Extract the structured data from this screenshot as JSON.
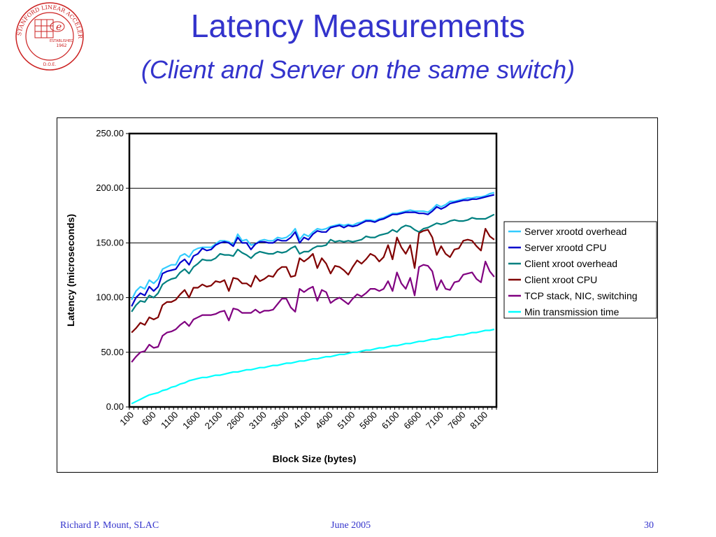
{
  "slide": {
    "title": "Latency Measurements",
    "subtitle": "(Client and Server on the same switch)",
    "footer_left": "Richard P. Mount,   SLAC",
    "footer_center": "June 2005",
    "footer_right": "30",
    "text_color": "#3333cc",
    "logo": {
      "icon": "slac-seal-icon",
      "ring_text": "STANFORD LINEAR ACCELERATOR CENTER",
      "established": "ESTABLISHED",
      "year": "1962",
      "bottom_text": "D.O.E.",
      "color": "#cc2222"
    }
  },
  "chart_data": {
    "type": "line",
    "title": "",
    "xlabel": "Block Size (bytes)",
    "ylabel": "Latency (microseconds)",
    "ylim": [
      0,
      250
    ],
    "yticks": [
      "0.00",
      "50.00",
      "100.00",
      "150.00",
      "200.00",
      "250.00"
    ],
    "x": [
      100,
      200,
      300,
      400,
      500,
      600,
      700,
      800,
      900,
      1000,
      1100,
      1200,
      1300,
      1400,
      1500,
      1600,
      1700,
      1800,
      1900,
      2000,
      2100,
      2200,
      2300,
      2400,
      2500,
      2600,
      2700,
      2800,
      2900,
      3000,
      3100,
      3200,
      3300,
      3400,
      3500,
      3600,
      3700,
      3800,
      3900,
      4000,
      4100,
      4200,
      4300,
      4400,
      4500,
      4600,
      4700,
      4800,
      4900,
      5000,
      5100,
      5200,
      5300,
      5400,
      5500,
      5600,
      5700,
      5800,
      5900,
      6000,
      6100,
      6200,
      6300,
      6400,
      6500,
      6600,
      6700,
      6800,
      6900,
      7000,
      7100,
      7200,
      7300,
      7400,
      7500,
      7600,
      7700,
      7800,
      7900,
      8000,
      8100,
      8200,
      8300
    ],
    "xtick_labels": [
      "100",
      "600",
      "1100",
      "1600",
      "2100",
      "2600",
      "3100",
      "3600",
      "4100",
      "4600",
      "5100",
      "5600",
      "6100",
      "6600",
      "7100",
      "7600",
      "8100"
    ],
    "grid": "horizontal",
    "legend": "right",
    "series": [
      {
        "name": "Server xrootd overhead",
        "color": "#33ccff",
        "values": [
          98,
          106,
          110,
          108,
          116,
          113,
          117,
          126,
          128,
          130,
          130,
          138,
          140,
          137,
          143,
          145,
          146,
          146,
          146,
          149,
          152,
          152,
          151,
          148,
          158,
          152,
          153,
          148,
          149,
          152,
          153,
          152,
          152,
          155,
          154,
          155,
          158,
          163,
          153,
          158,
          156,
          160,
          163,
          162,
          163,
          165,
          166,
          167,
          166,
          167,
          166,
          168,
          169,
          171,
          171,
          170,
          172,
          173,
          175,
          177,
          177,
          178,
          179,
          180,
          179,
          179,
          179,
          178,
          181,
          185,
          183,
          185,
          188,
          188,
          189,
          190,
          191,
          191,
          192,
          192,
          193,
          195,
          196
        ]
      },
      {
        "name": "Server xrootd CPU",
        "color": "#0000cc",
        "values": [
          92,
          100,
          104,
          102,
          110,
          106,
          110,
          122,
          124,
          125,
          126,
          132,
          135,
          130,
          138,
          140,
          145,
          143,
          144,
          148,
          150,
          151,
          150,
          147,
          155,
          150,
          150,
          144,
          149,
          151,
          151,
          150,
          150,
          153,
          152,
          152,
          155,
          160,
          150,
          155,
          153,
          158,
          161,
          160,
          160,
          164,
          165,
          166,
          164,
          166,
          165,
          166,
          168,
          170,
          170,
          169,
          171,
          172,
          174,
          176,
          176,
          177,
          178,
          178,
          178,
          177,
          177,
          176,
          179,
          183,
          181,
          183,
          186,
          187,
          188,
          189,
          189,
          190,
          190,
          191,
          192,
          193,
          194
        ]
      },
      {
        "name": "Client xroot overhead",
        "color": "#008080",
        "values": [
          87,
          93,
          97,
          96,
          102,
          100,
          104,
          112,
          115,
          117,
          118,
          123,
          126,
          122,
          128,
          131,
          135,
          134,
          134,
          136,
          140,
          139,
          139,
          138,
          144,
          141,
          139,
          136,
          140,
          142,
          141,
          140,
          140,
          142,
          141,
          142,
          145,
          147,
          140,
          142,
          142,
          145,
          147,
          147,
          148,
          153,
          151,
          152,
          151,
          152,
          151,
          152,
          153,
          156,
          155,
          155,
          157,
          158,
          159,
          162,
          160,
          164,
          166,
          165,
          162,
          160,
          163,
          164,
          166,
          168,
          167,
          168,
          170,
          171,
          170,
          170,
          171,
          173,
          172,
          172,
          172,
          174,
          176
        ]
      },
      {
        "name": "Client xroot CPU",
        "color": "#800000",
        "values": [
          68,
          72,
          77,
          75,
          82,
          80,
          82,
          93,
          96,
          96,
          98,
          103,
          107,
          100,
          109,
          109,
          112,
          110,
          111,
          115,
          114,
          116,
          106,
          118,
          117,
          113,
          113,
          110,
          120,
          115,
          117,
          120,
          119,
          125,
          128,
          128,
          119,
          120,
          136,
          133,
          136,
          140,
          127,
          136,
          131,
          122,
          129,
          128,
          125,
          121,
          128,
          134,
          131,
          135,
          140,
          138,
          133,
          137,
          148,
          135,
          155,
          146,
          140,
          148,
          127,
          159,
          161,
          162,
          155,
          139,
          147,
          140,
          137,
          144,
          145,
          152,
          153,
          152,
          147,
          143,
          163,
          156,
          153
        ]
      },
      {
        "name": "TCP stack, NIC, switching",
        "color": "#800080",
        "values": [
          41,
          46,
          50,
          51,
          57,
          54,
          55,
          65,
          68,
          69,
          71,
          75,
          78,
          74,
          80,
          82,
          84,
          84,
          84,
          85,
          87,
          88,
          79,
          90,
          89,
          86,
          86,
          86,
          89,
          86,
          88,
          88,
          89,
          94,
          99,
          99,
          91,
          87,
          108,
          105,
          108,
          110,
          97,
          107,
          105,
          95,
          98,
          100,
          97,
          94,
          99,
          103,
          101,
          104,
          108,
          108,
          106,
          108,
          115,
          106,
          123,
          113,
          108,
          118,
          102,
          128,
          130,
          129,
          124,
          107,
          116,
          108,
          107,
          114,
          115,
          121,
          122,
          123,
          117,
          114,
          133,
          124,
          119
        ]
      },
      {
        "name": "Min transmission time",
        "color": "#00ffff",
        "values": [
          3,
          5,
          7,
          9,
          11,
          12,
          13,
          15,
          16,
          18,
          19,
          21,
          22,
          24,
          25,
          26,
          27,
          27,
          28,
          29,
          29,
          30,
          31,
          32,
          32,
          33,
          34,
          34,
          35,
          36,
          36,
          37,
          38,
          38,
          39,
          40,
          40,
          41,
          42,
          42,
          43,
          44,
          44,
          45,
          46,
          46,
          47,
          48,
          48,
          49,
          50,
          50,
          51,
          52,
          52,
          53,
          54,
          54,
          55,
          56,
          56,
          57,
          58,
          58,
          59,
          60,
          60,
          61,
          62,
          62,
          63,
          64,
          64,
          65,
          66,
          66,
          67,
          68,
          68,
          69,
          70,
          70,
          71
        ]
      }
    ]
  }
}
